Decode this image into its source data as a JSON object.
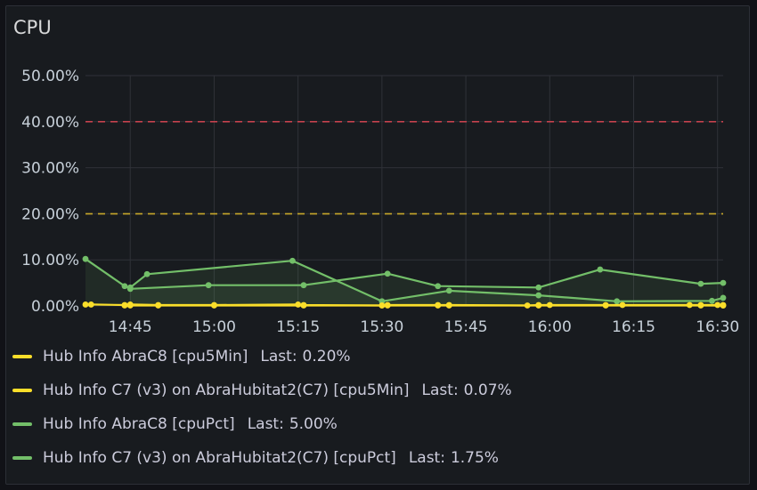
{
  "panel": {
    "title": "CPU"
  },
  "colors": {
    "yellow": "#fade2a",
    "green": "#73bf69",
    "threshold_red": "#c4424d",
    "threshold_yellow": "#c9a92a",
    "grid": "#2f3238",
    "tick_text": "#c7d0d9"
  },
  "chart_data": {
    "type": "line",
    "title": "CPU",
    "ylim": [
      0,
      50
    ],
    "y_ticks": [
      "0.00%",
      "10.00%",
      "20.00%",
      "30.00%",
      "40.00%",
      "50.00%"
    ],
    "x_range": [
      "14:37",
      "16:31"
    ],
    "x_ticks": [
      "14:45",
      "15:00",
      "15:15",
      "15:30",
      "15:45",
      "16:00",
      "16:15",
      "16:30"
    ],
    "grid": true,
    "legend_position": "bottom",
    "thresholds": [
      {
        "value": 40,
        "color": "#c4424d",
        "style": "dashed"
      },
      {
        "value": 20,
        "color": "#c9a92a",
        "style": "dashed"
      }
    ],
    "series": [
      {
        "name": "Hub Info AbraC8 [cpu5Min]",
        "color": "#fade2a",
        "last": "0.20%",
        "x": [
          "14:37",
          "14:38",
          "14:44",
          "14:45",
          "14:50",
          "15:00",
          "15:15",
          "15:16",
          "15:30",
          "15:31",
          "15:40",
          "15:42",
          "15:56",
          "15:58",
          "16:00",
          "16:10",
          "16:13",
          "16:25",
          "16:27",
          "16:30",
          "16:31"
        ],
        "y": [
          0.3,
          0.3,
          0.2,
          0.3,
          0.2,
          0.2,
          0.3,
          0.2,
          0.1,
          0.2,
          0.2,
          0.2,
          0.1,
          0.2,
          0.2,
          0.2,
          0.2,
          0.2,
          0.2,
          0.2,
          0.2
        ]
      },
      {
        "name": "Hub Info C7 (v3) on AbraHubitat2(C7) [cpu5Min]",
        "color": "#fade2a",
        "last": "0.07%",
        "x": [
          "14:44",
          "14:45",
          "14:50",
          "15:00",
          "15:16",
          "15:30",
          "15:31",
          "15:40",
          "15:42",
          "15:58",
          "16:10",
          "16:27",
          "16:31"
        ],
        "y": [
          0.1,
          0.1,
          0.1,
          0.1,
          0.1,
          0.1,
          0.1,
          0.1,
          0.1,
          0.1,
          0.1,
          0.1,
          0.07
        ]
      },
      {
        "name": "Hub Info AbraC8 [cpuPct]",
        "color": "#73bf69",
        "last": "5.00%",
        "x": [
          "14:37",
          "14:44",
          "14:45",
          "14:59",
          "15:16",
          "15:31",
          "15:40",
          "15:58",
          "16:09",
          "16:27",
          "16:31"
        ],
        "y": [
          10.2,
          4.3,
          3.7,
          4.5,
          4.5,
          7.0,
          4.3,
          4.0,
          7.9,
          4.8,
          5.0
        ]
      },
      {
        "name": "Hub Info C7 (v3) on AbraHubitat2(C7) [cpuPct]",
        "color": "#73bf69",
        "last": "1.75%",
        "x": [
          "14:45",
          "14:48",
          "15:14",
          "15:30",
          "15:42",
          "15:58",
          "16:12",
          "16:29",
          "16:31"
        ],
        "y": [
          4.0,
          6.9,
          9.8,
          1.0,
          3.3,
          2.3,
          1.0,
          1.1,
          1.75
        ]
      }
    ]
  },
  "legend": [
    {
      "name": "Hub Info AbraC8 [cpu5Min]",
      "last_label": "Last:",
      "last": "0.20%",
      "color": "#fade2a"
    },
    {
      "name": "Hub Info C7 (v3) on AbraHubitat2(C7) [cpu5Min]",
      "last_label": "Last:",
      "last": "0.07%",
      "color": "#fade2a"
    },
    {
      "name": "Hub Info AbraC8 [cpuPct]",
      "last_label": "Last:",
      "last": "5.00%",
      "color": "#73bf69"
    },
    {
      "name": "Hub Info C7 (v3) on AbraHubitat2(C7) [cpuPct]",
      "last_label": "Last:",
      "last": "1.75%",
      "color": "#73bf69"
    }
  ]
}
